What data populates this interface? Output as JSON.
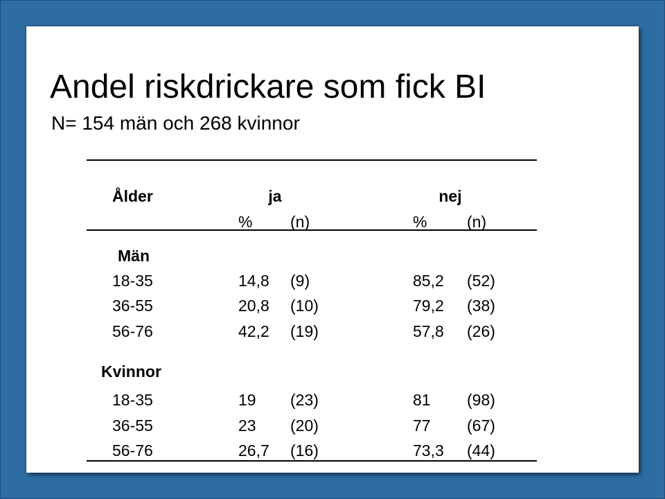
{
  "title": "Andel riskdrickare som fick BI",
  "subtitle": "N= 154 män och 268 kvinnor",
  "table": {
    "header": {
      "age": "Ålder",
      "yes": "ja",
      "no": "nej",
      "pct": "%",
      "n": "(n)"
    },
    "groups": [
      {
        "label": "Män",
        "rows": [
          {
            "age": "18-35",
            "yes_pct": "14,8",
            "yes_n": "(9)",
            "no_pct": "85,2",
            "no_n": "(52)"
          },
          {
            "age": "36-55",
            "yes_pct": "20,8",
            "yes_n": "(10)",
            "no_pct": "79,2",
            "no_n": "(38)"
          },
          {
            "age": "56-76",
            "yes_pct": "42,2",
            "yes_n": "(19)",
            "no_pct": "57,8",
            "no_n": "(26)"
          }
        ]
      },
      {
        "label": "Kvinnor",
        "rows": [
          {
            "age": "18-35",
            "yes_pct": "19",
            "yes_n": "(23)",
            "no_pct": "81",
            "no_n": "(98)"
          },
          {
            "age": "36-55",
            "yes_pct": "23",
            "yes_n": "(20)",
            "no_pct": "77",
            "no_n": "(67)"
          },
          {
            "age": "56-76",
            "yes_pct": "26,7",
            "yes_n": "(16)",
            "no_pct": "73,3",
            "no_n": "(44)"
          }
        ]
      }
    ]
  }
}
